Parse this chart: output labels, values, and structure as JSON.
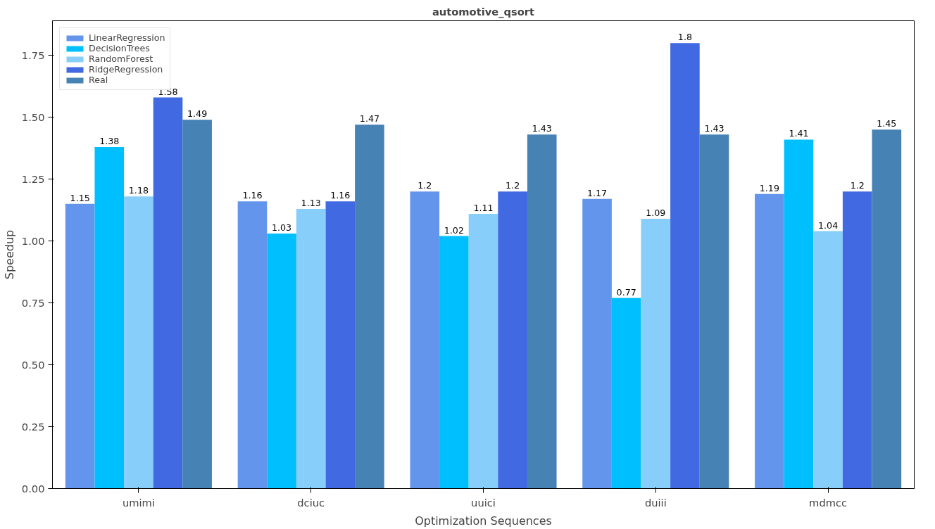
{
  "chart_data": {
    "type": "bar",
    "title": "automotive_qsort",
    "xlabel": "Optimization Sequences",
    "ylabel": "Speedup",
    "categories": [
      "umimi",
      "dciuc",
      "uuici",
      "duiii",
      "mdmcc"
    ],
    "series": [
      {
        "name": "LinearRegression",
        "color": "#6495ed",
        "values": [
          1.15,
          1.16,
          1.2,
          1.17,
          1.19
        ]
      },
      {
        "name": "DecisionTrees",
        "color": "#00bfff",
        "values": [
          1.38,
          1.03,
          1.02,
          0.77,
          1.41
        ]
      },
      {
        "name": "RandomForest",
        "color": "#87cefa",
        "values": [
          1.18,
          1.13,
          1.11,
          1.09,
          1.04
        ]
      },
      {
        "name": "RidgeRegression",
        "color": "#4169e1",
        "values": [
          1.58,
          1.16,
          1.2,
          1.8,
          1.2
        ]
      },
      {
        "name": "Real",
        "color": "#4682b4",
        "values": [
          1.49,
          1.47,
          1.43,
          1.43,
          1.45
        ]
      }
    ],
    "ylim": [
      0,
      1.89
    ],
    "yticks": [
      {
        "value": 0,
        "label": "0.00"
      },
      {
        "value": 0.25,
        "label": "0.25"
      },
      {
        "value": 0.5,
        "label": "0.50"
      },
      {
        "value": 0.75,
        "label": "0.75"
      },
      {
        "value": 1.0,
        "label": "1.00"
      },
      {
        "value": 1.25,
        "label": "1.25"
      },
      {
        "value": 1.5,
        "label": "1.50"
      },
      {
        "value": 1.75,
        "label": "1.75"
      }
    ],
    "data_labels": true,
    "legend": "top left",
    "grid": false
  }
}
